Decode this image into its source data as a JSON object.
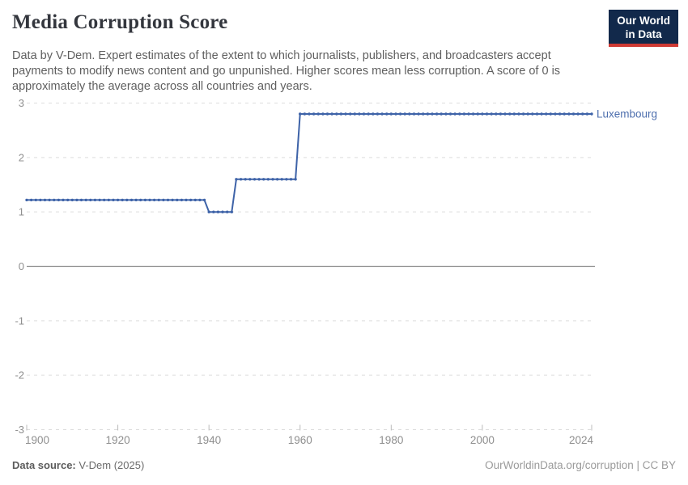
{
  "header": {
    "title": "Media Corruption Score",
    "subtitle": "Data by V-Dem. Expert estimates of the extent to which journalists, publishers, and broadcasters accept payments to modify news content and go unpunished. Higher scores mean less corruption. A score of 0 is approximately the average across all countries and years."
  },
  "logo": {
    "line1": "Our World",
    "line2": "in Data",
    "bg_color": "#12294b",
    "accent_color": "#cf3a34"
  },
  "chart_data": {
    "type": "line",
    "title": "Media Corruption Score",
    "entity_label": "Luxembourg",
    "line_color": "#3e63a8",
    "entity_label_color": "#4e6fae",
    "xlim": [
      1900,
      2024
    ],
    "ylim": [
      -3,
      3
    ],
    "x_ticks": [
      1900,
      1920,
      1940,
      1960,
      1980,
      2000,
      2024
    ],
    "y_ticks": [
      3,
      2,
      1,
      0,
      -1,
      -2,
      -3
    ],
    "grid": "horizontal dashed gridlines, solid line at zero, yearly dot markers",
    "legend_position": "right of line end",
    "step_segments": [
      {
        "start_year": 1900,
        "end_year": 1939,
        "value": 1.22
      },
      {
        "start_year": 1940,
        "end_year": 1945,
        "value": 1.0
      },
      {
        "start_year": 1946,
        "end_year": 1959,
        "value": 1.6
      },
      {
        "start_year": 1960,
        "end_year": 2024,
        "value": 2.8
      }
    ]
  },
  "footer": {
    "source_label": "Data source:",
    "source_value": "V-Dem (2025)",
    "credit": "OurWorldinData.org/corruption | CC BY"
  }
}
